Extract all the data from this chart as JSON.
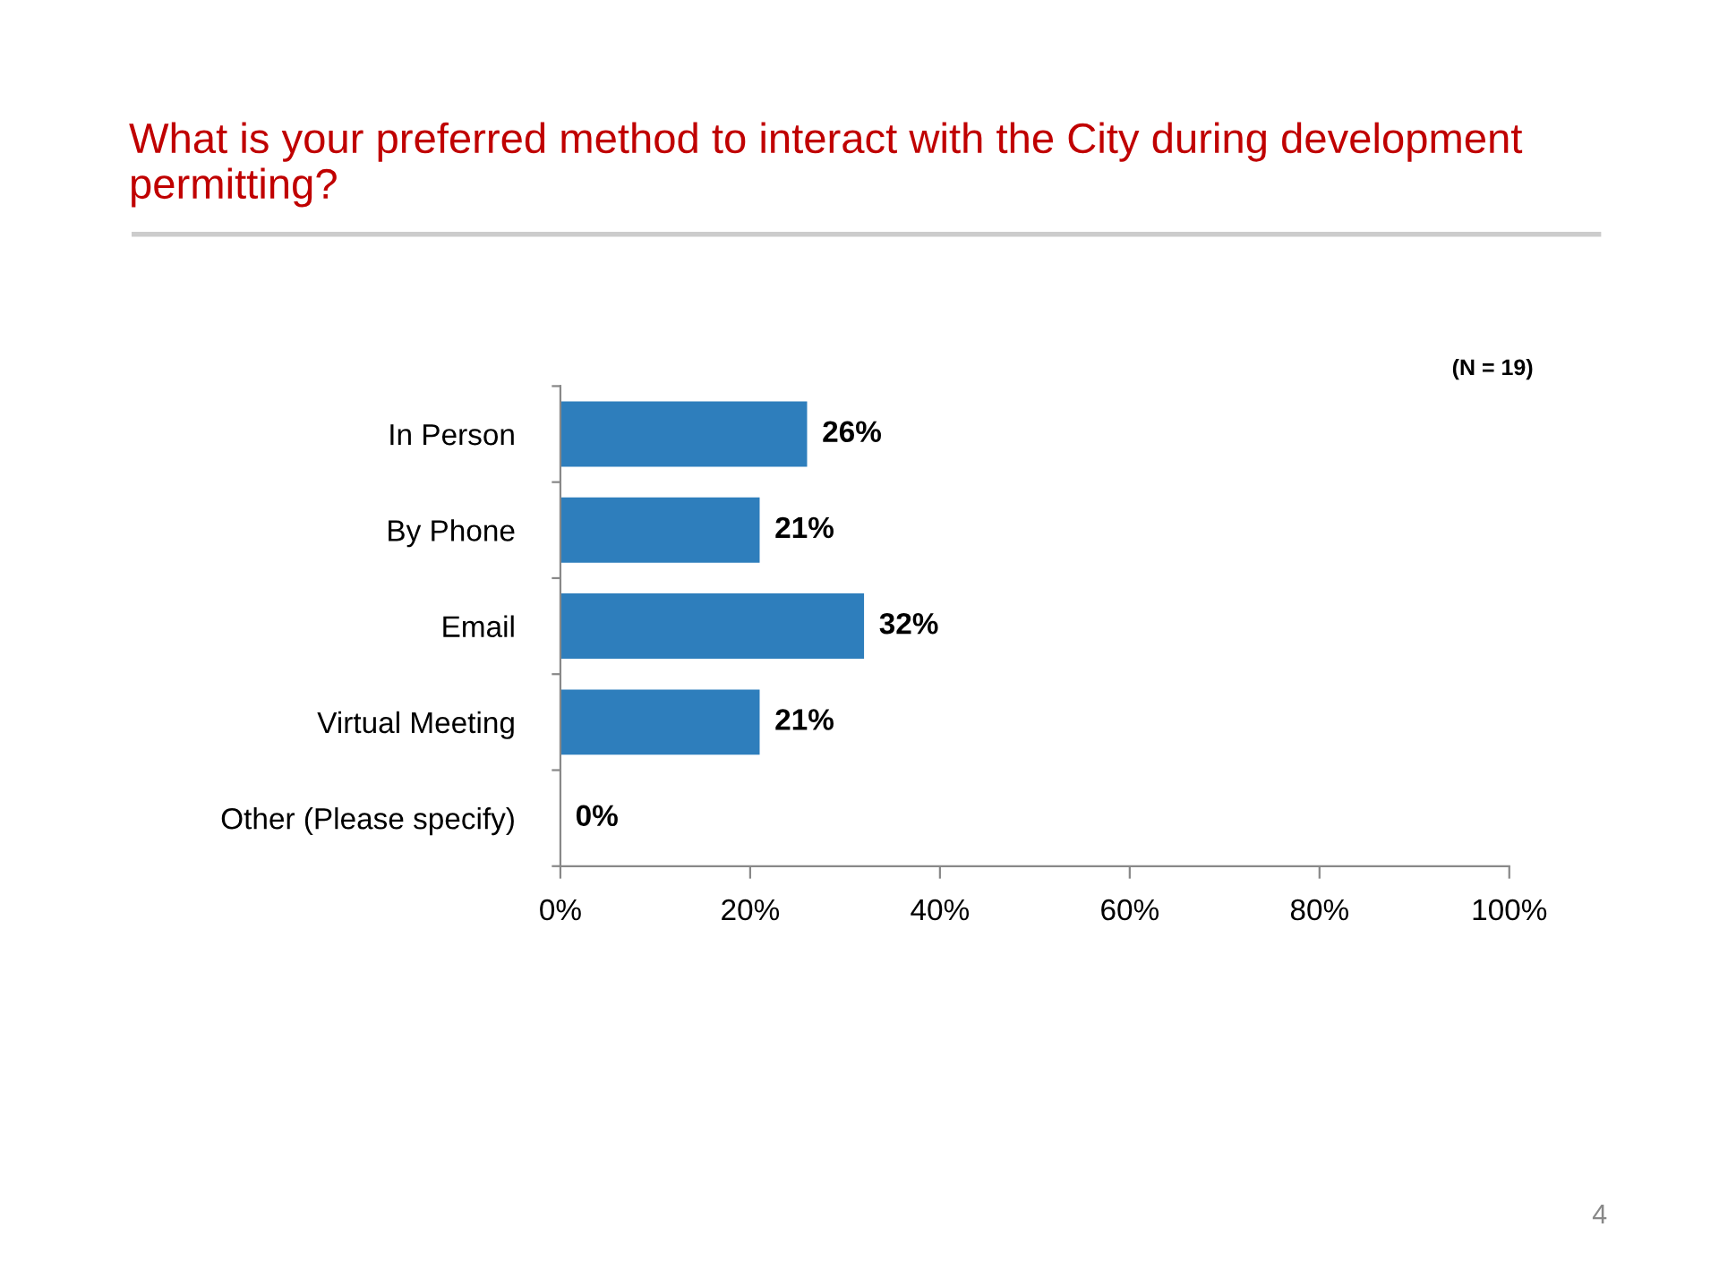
{
  "chart_data": {
    "type": "bar",
    "orientation": "horizontal",
    "title": "What is your preferred method to interact with the City during development permitting?",
    "categories": [
      "In Person",
      "By Phone",
      "Email",
      "Virtual Meeting",
      "Other (Please specify)"
    ],
    "values": [
      26,
      21,
      32,
      21,
      0
    ],
    "value_labels": [
      "26%",
      "21%",
      "32%",
      "21%",
      "0%"
    ],
    "color": "#2e7ebc",
    "xlim": [
      0,
      100
    ],
    "xticks": [
      {
        "value": 0,
        "label": "0%"
      },
      {
        "value": 20,
        "label": "20%"
      },
      {
        "value": 40,
        "label": "40%"
      },
      {
        "value": 60,
        "label": "60%"
      },
      {
        "value": 80,
        "label": "80%"
      },
      {
        "value": 100,
        "label": "100%"
      }
    ],
    "grid": false,
    "annotations": [
      "(N = 19)",
      "4"
    ]
  }
}
